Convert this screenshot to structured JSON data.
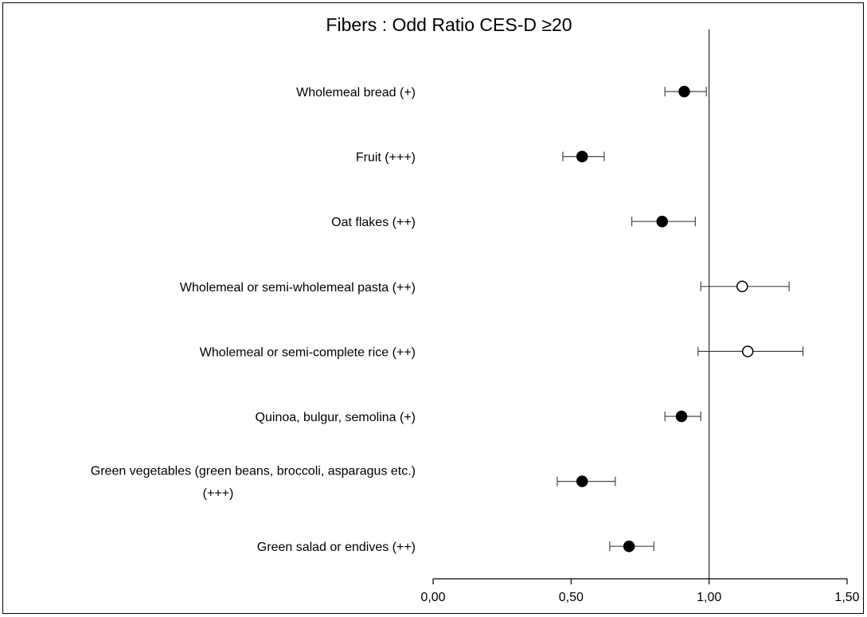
{
  "chart_data": {
    "type": "scatter",
    "title": "Fibers : Odd Ratio CES-D ≥20",
    "xlabel": "",
    "ylabel": "",
    "xlim": [
      0,
      1.5
    ],
    "x_ticks": [
      "0,00",
      "0,50",
      "1,00",
      "1,50"
    ],
    "reference_line": 1.0,
    "grid": false,
    "categories": [
      "Wholemeal bread (+)",
      "Fruit (+++)",
      "Oat flakes (++)",
      "Wholemeal or semi-wholemeal pasta (++)",
      "Wholemeal or semi-complete rice (++)",
      "Quinoa, bulgur, semolina (+)",
      "Green vegetables (green beans, broccoli, asparagus etc.)\n(+++)",
      "Green salad or endives (++)"
    ],
    "series": [
      {
        "values": [
          0.91,
          0.54,
          0.83,
          1.12,
          1.14,
          0.9,
          0.54,
          0.71
        ],
        "ci_low": [
          0.84,
          0.47,
          0.72,
          0.97,
          0.96,
          0.84,
          0.45,
          0.64
        ],
        "ci_high": [
          0.99,
          0.62,
          0.95,
          1.29,
          1.34,
          0.97,
          0.66,
          0.8
        ],
        "filled": [
          true,
          true,
          true,
          false,
          false,
          true,
          true,
          true
        ]
      }
    ],
    "colors": {
      "marker": "#000000",
      "axis": "#000000",
      "errorbar": "#444444"
    }
  }
}
